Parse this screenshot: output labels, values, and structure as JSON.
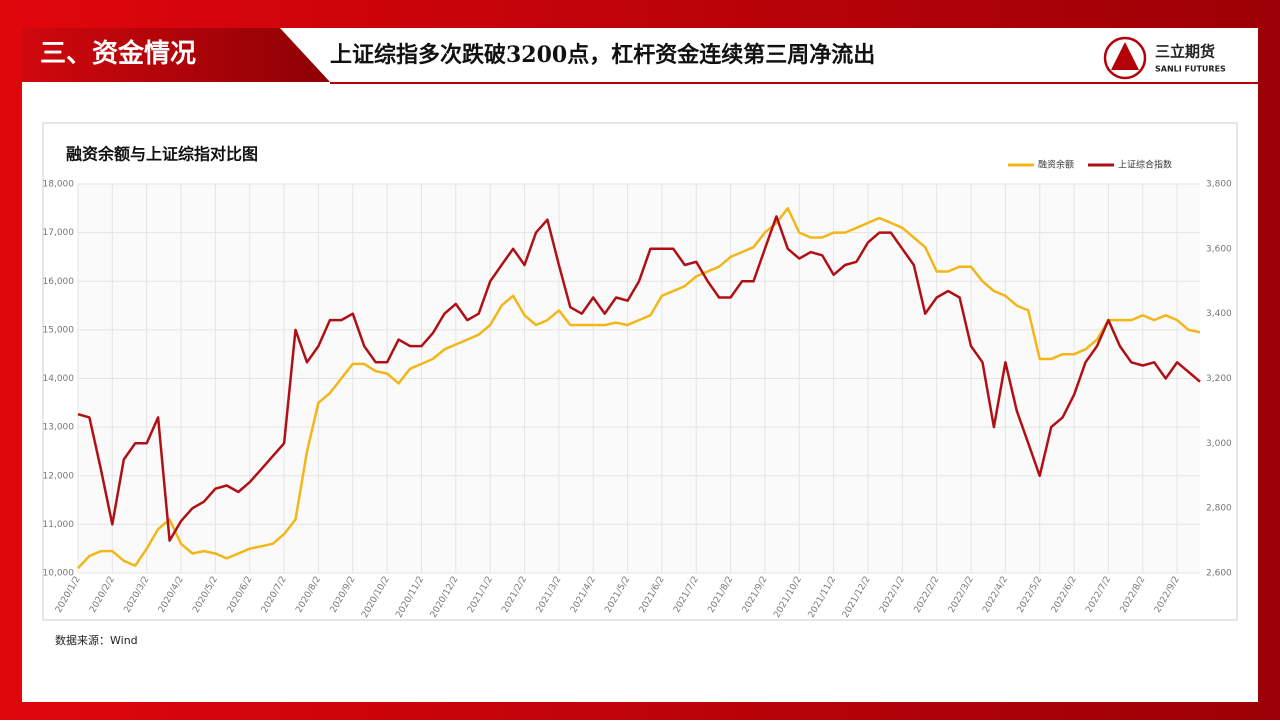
{
  "header": {
    "section": "三、资金情况",
    "headline": "上证综指多次跌破3200点，杠杆资金连续第三周净流出"
  },
  "logo": {
    "name": "三立期货",
    "name_en": "SANLI FUTURES"
  },
  "source": "数据来源：Wind",
  "chart_data": {
    "type": "line",
    "title": "融资余额与上证综指对比图",
    "categories": [
      "2020/1/2",
      null,
      null,
      "2020/2/2",
      null,
      null,
      "2020/3/2",
      null,
      null,
      "2020/4/2",
      null,
      null,
      "2020/5/2",
      null,
      null,
      "2020/6/2",
      null,
      null,
      "2020/7/2",
      null,
      null,
      "2020/8/2",
      null,
      null,
      "2020/9/2",
      null,
      null,
      "2020/10/2",
      null,
      null,
      "2020/11/2",
      null,
      null,
      "2020/12/2",
      null,
      null,
      "2021/1/2",
      null,
      null,
      "2021/2/2",
      null,
      null,
      "2021/3/2",
      null,
      null,
      "2021/4/2",
      null,
      null,
      "2021/5/2",
      null,
      null,
      "2021/6/2",
      null,
      null,
      "2021/7/2",
      null,
      null,
      "2021/8/2",
      null,
      null,
      "2021/9/2",
      null,
      null,
      "2021/10/2",
      null,
      null,
      "2021/11/2",
      null,
      null,
      "2021/12/2",
      null,
      null,
      "2022/1/2",
      null,
      null,
      "2022/2/2",
      null,
      null,
      "2022/3/2",
      null,
      null,
      "2022/4/2",
      null,
      null,
      "2022/5/2",
      null,
      null,
      "2022/6/2",
      null,
      null,
      "2022/7/2",
      null,
      null,
      "2022/8/2",
      null,
      null,
      "2022/9/2",
      null,
      null
    ],
    "series": [
      {
        "name": "融资余额",
        "color": "#f2b616",
        "values": [
          10100,
          10350,
          10450,
          10450,
          10250,
          10150,
          10500,
          10900,
          11100,
          10600,
          10400,
          10450,
          10400,
          10300,
          10400,
          10500,
          10550,
          10600,
          10800,
          11100,
          12500,
          13500,
          13700,
          14000,
          14300,
          14300,
          14150,
          14100,
          13900,
          14200,
          14300,
          14400,
          14600,
          14700,
          14800,
          14900,
          15100,
          15500,
          15700,
          15300,
          15100,
          15200,
          15400,
          15100,
          15100,
          15100,
          15100,
          15150,
          15100,
          15200,
          15300,
          15700,
          15800,
          15900,
          16100,
          16200,
          16300,
          16500,
          16600,
          16700,
          17000,
          17200,
          17500,
          17000,
          16900,
          16900,
          17000,
          17000,
          17100,
          17200,
          17300,
          17200,
          17100,
          16900,
          16700,
          16200,
          16200,
          16300,
          16300,
          16000,
          15800,
          15700,
          15500,
          15400,
          14400,
          14400,
          14500,
          14500,
          14600,
          14800,
          15200,
          15200,
          15200,
          15300,
          15200,
          15300,
          15200,
          15000,
          14950
        ]
      },
      {
        "name": "上证综合指数",
        "color": "#b01015",
        "axis": "y2",
        "values": [
          3090,
          3080,
          2920,
          2750,
          2950,
          3000,
          3000,
          3080,
          2700,
          2760,
          2800,
          2820,
          2860,
          2870,
          2850,
          2880,
          2920,
          2960,
          3000,
          3350,
          3250,
          3300,
          3380,
          3380,
          3400,
          3300,
          3250,
          3250,
          3320,
          3300,
          3300,
          3340,
          3400,
          3430,
          3380,
          3400,
          3500,
          3550,
          3600,
          3550,
          3650,
          3690,
          3550,
          3420,
          3400,
          3450,
          3400,
          3450,
          3440,
          3500,
          3600,
          3600,
          3600,
          3550,
          3560,
          3500,
          3450,
          3450,
          3500,
          3500,
          3600,
          3700,
          3600,
          3570,
          3590,
          3580,
          3520,
          3550,
          3560,
          3620,
          3650,
          3650,
          3600,
          3550,
          3400,
          3450,
          3470,
          3450,
          3300,
          3250,
          3050,
          3250,
          3100,
          3000,
          2900,
          3050,
          3080,
          3150,
          3250,
          3300,
          3380,
          3300,
          3250,
          3240,
          3250,
          3200,
          3250,
          3220,
          3190
        ]
      }
    ],
    "ylim": [
      10000,
      18000
    ],
    "yticks": [
      {
        "value": 10000,
        "label": "10,000"
      },
      {
        "value": 11000,
        "label": "11,000"
      },
      {
        "value": 12000,
        "label": "12,000"
      },
      {
        "value": 13000,
        "label": "13,000"
      },
      {
        "value": 14000,
        "label": "14,000"
      },
      {
        "value": 15000,
        "label": "15,000"
      },
      {
        "value": 16000,
        "label": "16,000"
      },
      {
        "value": 17000,
        "label": "17,000"
      },
      {
        "value": 18000,
        "label": "18,000"
      }
    ],
    "y2lim": [
      2600,
      3800
    ],
    "y2ticks": [
      {
        "value": 2600,
        "label": "2,600"
      },
      {
        "value": 2800,
        "label": "2,800"
      },
      {
        "value": 3000,
        "label": "3,000"
      },
      {
        "value": 3200,
        "label": "3,200"
      },
      {
        "value": 3400,
        "label": "3,400"
      },
      {
        "value": 3600,
        "label": "3,600"
      },
      {
        "value": 3800,
        "label": "3,800"
      }
    ],
    "grid": true,
    "legend": "top-right"
  }
}
